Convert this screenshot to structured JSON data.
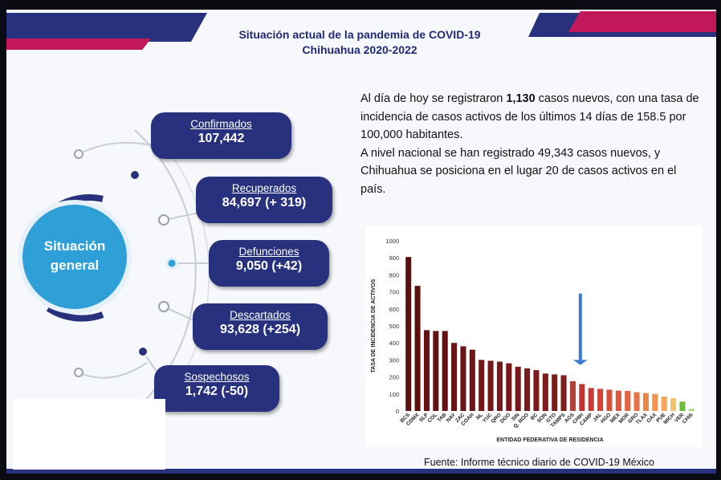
{
  "header": {
    "title": "Situación actual de la pandemia de COVID-19",
    "subtitle": "Chihuahua 2020-2022"
  },
  "summary": {
    "line1_pre": "Al día de hoy se registraron ",
    "line1_bold": "1,130",
    "line1_post": " casos nuevos, con una tasa de incidencia de casos activos de los últimos 14 días de 158.5 por 100,000 habitantes.",
    "line2": "A nivel nacional se han registrado 49,343 casos nuevos, y Chihuahua se posiciona en el lugar 20 de casos activos en el país."
  },
  "center": {
    "line1": "Situación",
    "line2": "general"
  },
  "stats": [
    {
      "label": "Confirmados",
      "value": "107,442"
    },
    {
      "label": "Recuperados",
      "value": "84,697 (+ 319)"
    },
    {
      "label": "Defunciones",
      "value": "9,050 (+42)"
    },
    {
      "label": "Descartados",
      "value": "93,628 (+254)"
    },
    {
      "label": "Sospechosos",
      "value": "1,742 (-50)"
    }
  ],
  "source": "Fuente: Informe técnico diario de COVID-19 México",
  "colors": {
    "navy": "#27317d",
    "magenta": "#c2185b",
    "circle": "#2f9fd8",
    "arrow": "#3a7bd5"
  },
  "chart_data": {
    "type": "bar",
    "title": "",
    "xlabel": "ENTIDAD FEDERATIVA DE RESIDENCIA",
    "ylabel": "TASA DE INCIDENCIA DE ACTIVOS",
    "ylim": [
      0,
      1000
    ],
    "yticks": [
      "1000",
      "900",
      "800",
      "700",
      "600",
      "500",
      "400",
      "300",
      "200",
      "100",
      "0"
    ],
    "highlight": "CHIH",
    "categories": [
      "BCS",
      "CDMX",
      "SLP",
      "COL",
      "TAB",
      "NAY",
      "ZAC",
      "COAH",
      "NL",
      "YUC",
      "QRO",
      "DGO",
      "SIN",
      "Q. ROO",
      "BC",
      "SON",
      "GTO",
      "TAMPS",
      "AGS",
      "CHIH",
      "CAMP",
      "JAL",
      "HGO",
      "MEX",
      "MOR",
      "GRO",
      "TLAX",
      "OAX",
      "PUE",
      "MICH",
      "VER",
      "CHIS"
    ],
    "values": [
      905,
      735,
      475,
      470,
      470,
      400,
      380,
      360,
      300,
      295,
      290,
      280,
      260,
      250,
      240,
      220,
      215,
      210,
      175,
      158,
      135,
      130,
      125,
      120,
      118,
      110,
      105,
      100,
      85,
      75,
      55,
      12
    ],
    "bar_colors": [
      "#5c0f0f",
      "#5c0f0f",
      "#641212",
      "#641212",
      "#641212",
      "#6b1414",
      "#6b1414",
      "#711616",
      "#711616",
      "#751818",
      "#751818",
      "#771919",
      "#771919",
      "#7a1a1a",
      "#7a1a1a",
      "#7e1c1c",
      "#7e1c1c",
      "#821e1e",
      "#b0403a",
      "#c2322f",
      "#c93b36",
      "#d1443a",
      "#d84d3c",
      "#de583f",
      "#e26543",
      "#e67347",
      "#eb834d",
      "#ef9353",
      "#f2a75a",
      "#f3c168",
      "#6dbb3c",
      "#a9d47a"
    ]
  }
}
